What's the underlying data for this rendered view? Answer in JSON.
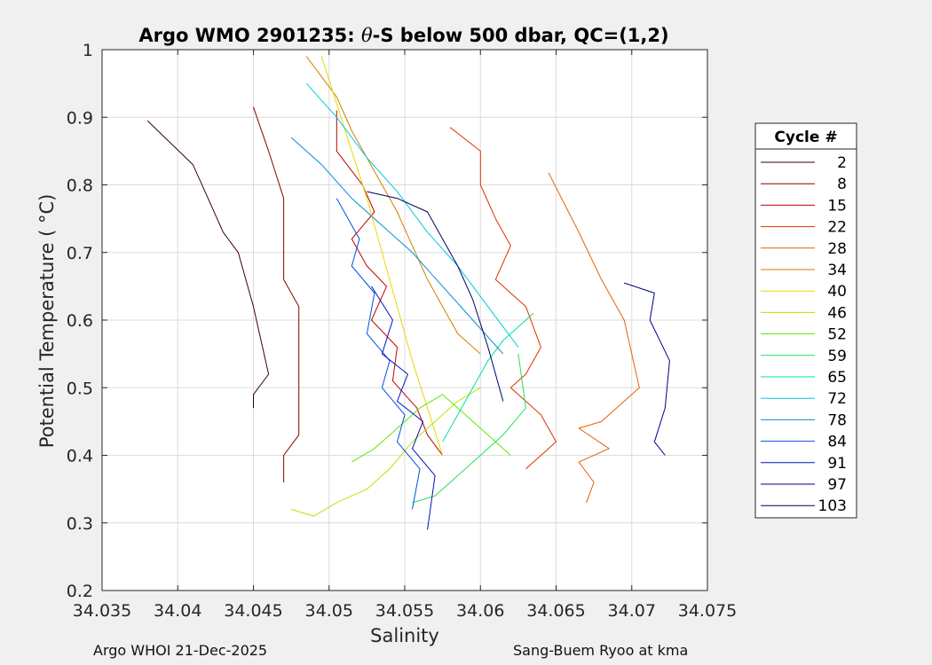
{
  "chart_data": {
    "type": "line",
    "title_prefix": "Argo WMO 2901235: ",
    "title_symbol": "θ",
    "title_suffix": "-S below 500 dbar,  QC=(1,2)",
    "xlabel": "Salinity",
    "ylabel": "Potential Temperature ( °C)",
    "xlim": [
      34.035,
      34.075
    ],
    "ylim": [
      0.2,
      1.0
    ],
    "xticks": [
      "34.035",
      "34.04",
      "34.045",
      "34.05",
      "34.055",
      "34.06",
      "34.065",
      "34.07",
      "34.075"
    ],
    "yticks": [
      "0.2",
      "0.3",
      "0.4",
      "0.5",
      "0.6",
      "0.7",
      "0.8",
      "0.9",
      "1"
    ],
    "grid": true,
    "legend": {
      "title": "Cycle #",
      "placement": "outside-right",
      "entries": [
        "2",
        "8",
        "15",
        "22",
        "28",
        "34",
        "40",
        "46",
        "52",
        "59",
        "65",
        "72",
        "78",
        "84",
        "91",
        "97",
        "103"
      ],
      "colors": [
        "#3a0000",
        "#8b0000",
        "#c00000",
        "#e03000",
        "#e86000",
        "#d08000",
        "#e8d800",
        "#b0e800",
        "#60e800",
        "#20e060",
        "#00e0a0",
        "#00c8e0",
        "#0090d0",
        "#0050e0",
        "#0010c0",
        "#000090",
        "#000060"
      ]
    },
    "series": [
      {
        "name": "2",
        "x": [
          34.038,
          34.041,
          34.042,
          34.043,
          34.044,
          34.045,
          34.046,
          34.045,
          34.045
        ],
        "y": [
          0.895,
          0.83,
          0.78,
          0.73,
          0.7,
          0.62,
          0.52,
          0.49,
          0.47
        ]
      },
      {
        "name": "8",
        "x": [
          34.045,
          34.046,
          34.047,
          34.047,
          34.048,
          34.048,
          34.047,
          34.047
        ],
        "y": [
          0.915,
          0.85,
          0.78,
          0.66,
          0.62,
          0.43,
          0.4,
          0.36
        ]
      },
      {
        "name": "15",
        "x": [
          34.0505,
          34.0505,
          34.0522,
          34.053,
          34.0515,
          34.0525,
          34.0538,
          34.0528,
          34.0545,
          34.0542,
          34.0558,
          34.0565,
          34.0575
        ],
        "y": [
          0.91,
          0.85,
          0.8,
          0.76,
          0.72,
          0.68,
          0.65,
          0.6,
          0.56,
          0.51,
          0.47,
          0.43,
          0.4
        ]
      },
      {
        "name": "22",
        "x": [
          34.058,
          34.06,
          34.06,
          34.061,
          34.062,
          34.061,
          34.063,
          34.064,
          34.063,
          34.062,
          34.064,
          34.065,
          34.063
        ],
        "y": [
          0.885,
          0.85,
          0.8,
          0.75,
          0.71,
          0.66,
          0.62,
          0.56,
          0.52,
          0.5,
          0.46,
          0.42,
          0.38
        ]
      },
      {
        "name": "28",
        "x": [
          34.0645,
          34.0665,
          34.068,
          34.0695,
          34.0705,
          34.068,
          34.0665,
          34.0685,
          34.0665,
          34.0675,
          34.067
        ],
        "y": [
          0.818,
          0.73,
          0.66,
          0.6,
          0.5,
          0.45,
          0.44,
          0.41,
          0.39,
          0.36,
          0.33
        ]
      },
      {
        "name": "34",
        "x": [
          34.0485,
          34.0505,
          34.0515,
          34.053,
          34.0545,
          34.0555,
          34.0565,
          34.0575,
          34.0585,
          34.06
        ],
        "y": [
          0.99,
          0.93,
          0.88,
          0.82,
          0.76,
          0.71,
          0.66,
          0.62,
          0.58,
          0.55
        ]
      },
      {
        "name": "40",
        "x": [
          34.0495,
          34.0505,
          34.0515,
          34.0525,
          34.0535,
          34.0545,
          34.0555,
          34.0565,
          34.0575
        ],
        "y": [
          0.99,
          0.92,
          0.85,
          0.78,
          0.7,
          0.62,
          0.54,
          0.47,
          0.4
        ]
      },
      {
        "name": "46",
        "x": [
          34.0475,
          34.049,
          34.0505,
          34.0525,
          34.054,
          34.0555,
          34.057,
          34.0585,
          34.06
        ],
        "y": [
          0.32,
          0.31,
          0.33,
          0.35,
          0.38,
          0.42,
          0.45,
          0.48,
          0.5
        ]
      },
      {
        "name": "52",
        "x": [
          34.0515,
          34.053,
          34.0545,
          34.056,
          34.0575,
          34.059,
          34.0605,
          34.062
        ],
        "y": [
          0.39,
          0.41,
          0.44,
          0.47,
          0.49,
          0.46,
          0.43,
          0.4
        ]
      },
      {
        "name": "59",
        "x": [
          34.0555,
          34.057,
          34.0585,
          34.06,
          34.0615,
          34.063,
          34.0625
        ],
        "y": [
          0.33,
          0.34,
          0.37,
          0.4,
          0.43,
          0.47,
          0.55
        ]
      },
      {
        "name": "65",
        "x": [
          34.0575,
          34.0585,
          34.0595,
          34.0605,
          34.0615,
          34.0625,
          34.0635
        ],
        "y": [
          0.42,
          0.46,
          0.5,
          0.54,
          0.57,
          0.59,
          0.61
        ]
      },
      {
        "name": "72",
        "x": [
          34.0485,
          34.0505,
          34.0525,
          34.0545,
          34.0565,
          34.0585,
          34.0605,
          34.0625
        ],
        "y": [
          0.95,
          0.9,
          0.84,
          0.79,
          0.73,
          0.68,
          0.62,
          0.56
        ]
      },
      {
        "name": "78",
        "x": [
          34.0475,
          34.0495,
          34.0515,
          34.0535,
          34.0555,
          34.0575,
          34.0595,
          34.0615
        ],
        "y": [
          0.87,
          0.83,
          0.78,
          0.74,
          0.7,
          0.65,
          0.6,
          0.55
        ]
      },
      {
        "name": "84",
        "x": [
          34.0505,
          34.052,
          34.0515,
          34.053,
          34.0525,
          34.054,
          34.0535,
          34.055,
          34.0545,
          34.056,
          34.0555
        ],
        "y": [
          0.78,
          0.72,
          0.68,
          0.64,
          0.58,
          0.54,
          0.5,
          0.46,
          0.42,
          0.38,
          0.32
        ]
      },
      {
        "name": "91",
        "x": [
          34.0528,
          34.0542,
          34.0535,
          34.0552,
          34.0545,
          34.0562,
          34.0555,
          34.057,
          34.0565
        ],
        "y": [
          0.65,
          0.6,
          0.55,
          0.52,
          0.48,
          0.45,
          0.41,
          0.37,
          0.29
        ]
      },
      {
        "name": "97",
        "x": [
          34.0695,
          34.0715,
          34.0712,
          34.0725,
          34.0722,
          34.0715,
          34.0722
        ],
        "y": [
          0.655,
          0.64,
          0.6,
          0.54,
          0.47,
          0.42,
          0.4
        ]
      },
      {
        "name": "103",
        "x": [
          34.0525,
          34.0545,
          34.0565,
          34.0575,
          34.0585,
          34.0595,
          34.0605,
          34.0615
        ],
        "y": [
          0.79,
          0.78,
          0.76,
          0.72,
          0.68,
          0.63,
          0.56,
          0.48
        ]
      }
    ]
  },
  "footer": {
    "left": "Argo WHOI 21-Dec-2025",
    "right": "Sang-Buem Ryoo at kma"
  }
}
